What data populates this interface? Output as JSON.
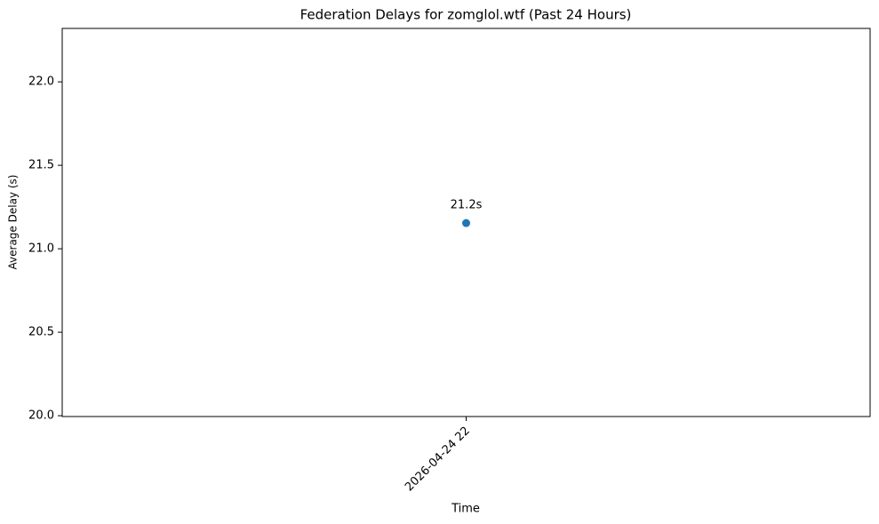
{
  "chart_data": {
    "type": "line",
    "title": "Federation Delays for zomglol.wtf (Past 24 Hours)",
    "x_label": "Time",
    "y_label": "Average Delay (s)",
    "categories": [
      "2026-04-24 22"
    ],
    "series": [
      {
        "values": [
          21.154
        ],
        "value_labels": [
          "21.2s"
        ],
        "color": "#1f77b4"
      }
    ],
    "ylim": [
      19.995,
      22.32
    ],
    "yticks": [
      {
        "value": 20,
        "label": "20.0"
      },
      20.5,
      {
        "value": 21,
        "label": "21.0"
      },
      21.5,
      {
        "value": 22,
        "label": "22.0"
      }
    ],
    "grid": false
  }
}
